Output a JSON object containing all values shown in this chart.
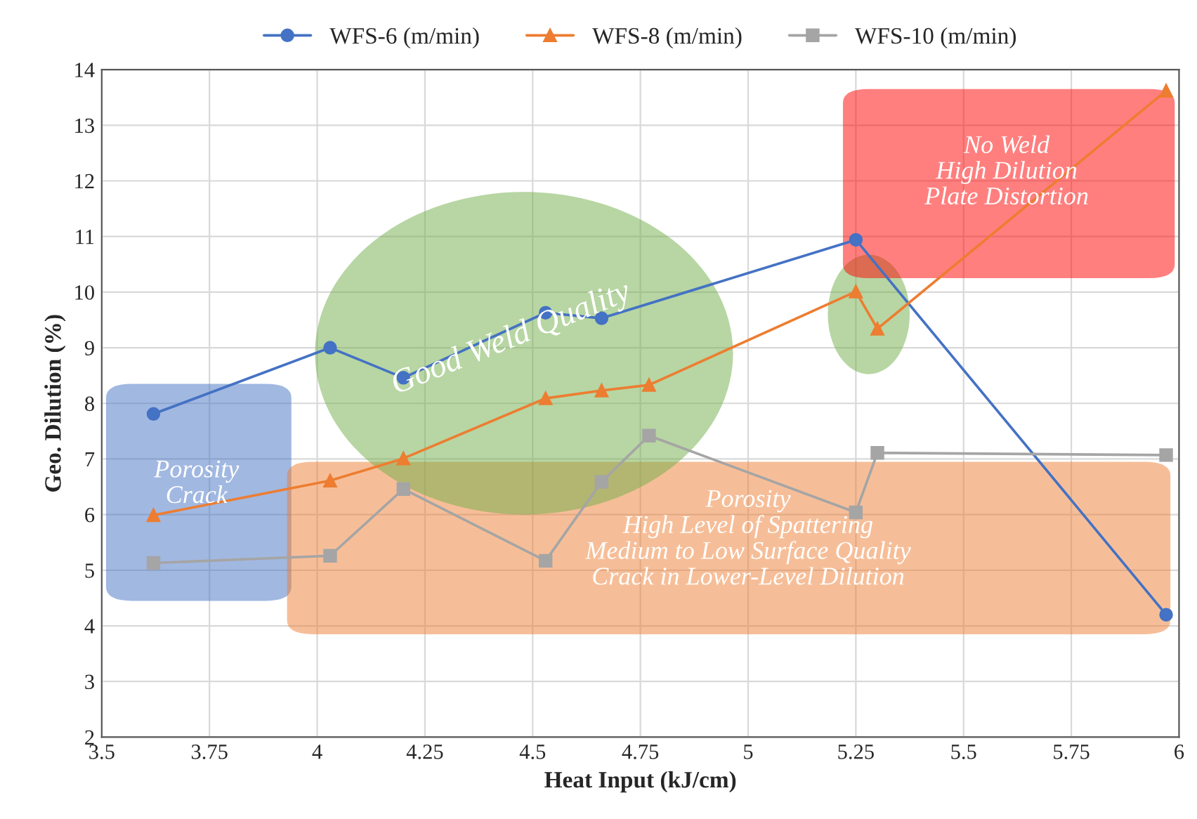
{
  "chart_data": {
    "type": "line",
    "xlabel": "Heat Input (kJ/cm)",
    "ylabel": "Geo. Dilution (%)",
    "series": [
      {
        "name": "WFS-6 (m/min)",
        "color": "#4472c4",
        "marker": "circle",
        "x": [
          3.62,
          4.03,
          4.2,
          4.53,
          4.66,
          5.25,
          5.97
        ],
        "values": [
          7.81,
          9.0,
          8.46,
          9.63,
          9.53,
          10.94,
          4.2
        ]
      },
      {
        "name": "WFS-8 (m/min)",
        "color": "#ed7d31",
        "marker": "triangle",
        "x": [
          3.62,
          4.03,
          4.2,
          4.53,
          4.66,
          4.77,
          5.25,
          5.3,
          5.97
        ],
        "values": [
          5.99,
          6.61,
          7.01,
          8.09,
          8.23,
          8.33,
          10.01,
          9.34,
          13.62
        ]
      },
      {
        "name": "WFS-10 (m/min)",
        "color": "#a5a5a5",
        "marker": "square",
        "x": [
          3.62,
          4.03,
          4.2,
          4.53,
          4.66,
          4.77,
          5.25,
          5.3,
          5.97
        ],
        "values": [
          5.13,
          5.26,
          6.46,
          5.17,
          6.59,
          7.42,
          6.04,
          7.11,
          7.07
        ]
      }
    ],
    "annotations": [
      "Porosity\nCrack",
      "Good Weld Quality",
      "No Weld\nHigh Dilution\nPlate Distortion",
      "Porosity\nHigh Level of Spattering\nMedium to Low Surface Quality\nCrack in Lower-Level Dilution"
    ],
    "xlim": [
      3.5,
      6
    ],
    "xticks": [
      3.5,
      3.75,
      4,
      4.25,
      4.5,
      4.75,
      5,
      5.25,
      5.5,
      5.75,
      6
    ],
    "ylim": [
      2,
      14
    ],
    "yticks": [
      2,
      3,
      4,
      5,
      6,
      7,
      8,
      9,
      10,
      11,
      12,
      13,
      14
    ],
    "grid": true,
    "legend": "top",
    "line_style": "solid"
  }
}
